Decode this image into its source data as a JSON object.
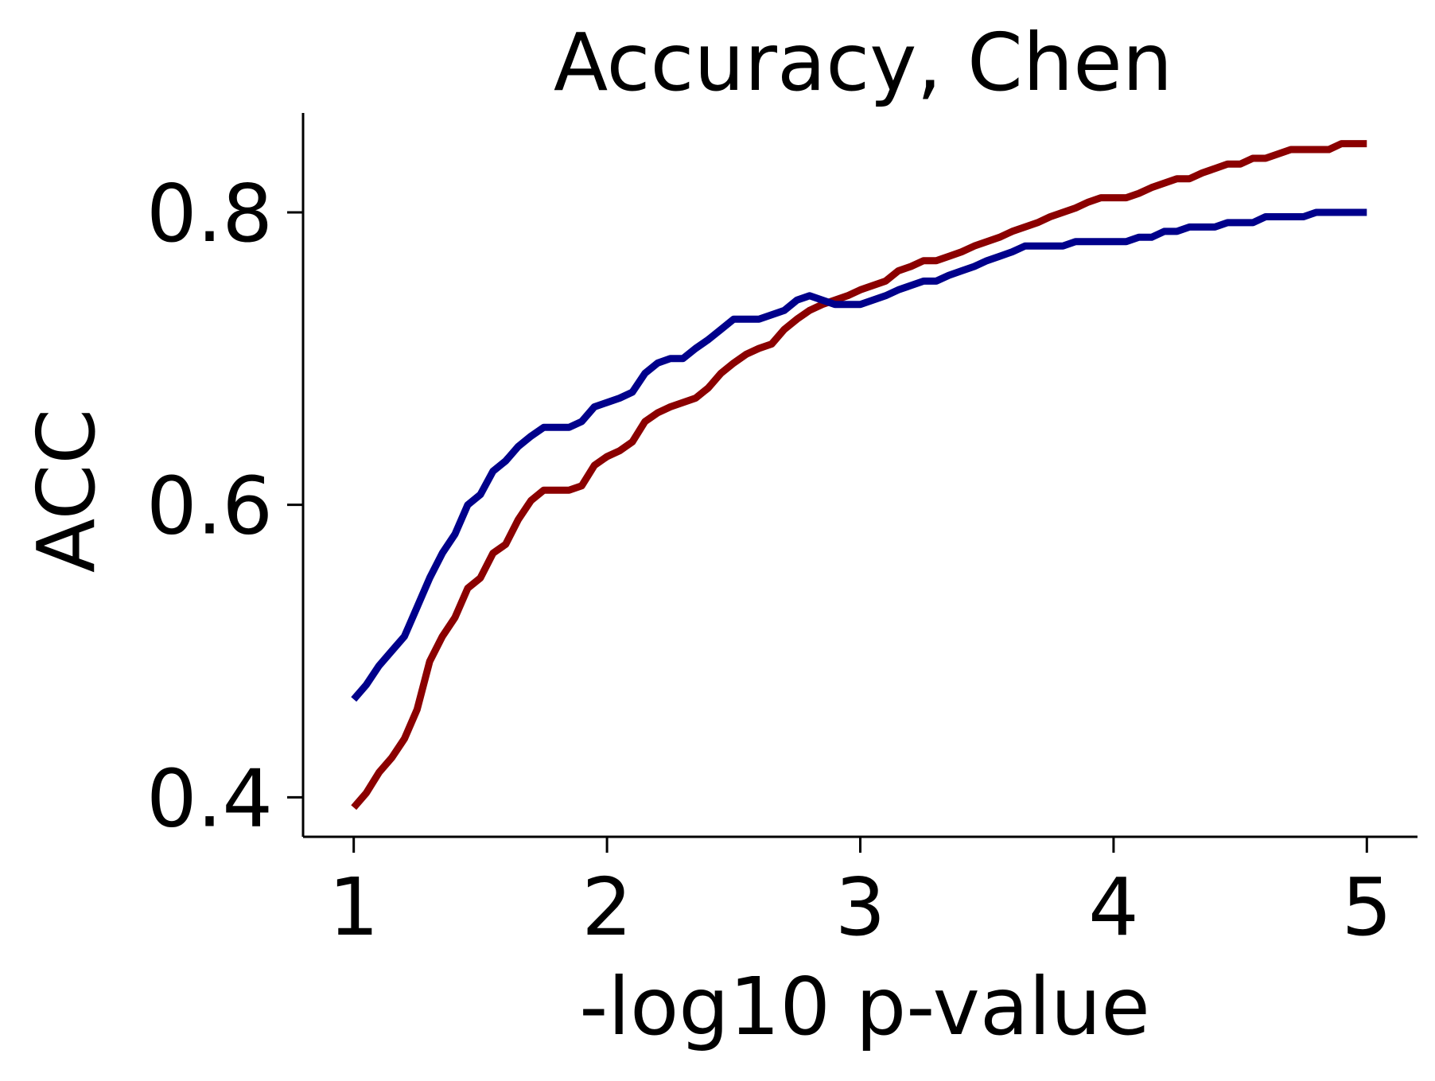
{
  "chart_data": {
    "type": "line",
    "title": "Accuracy, Chen",
    "xlabel": "-log10 p-value",
    "ylabel": "ACC",
    "xlim": [
      0.8,
      5.2
    ],
    "ylim": [
      0.373,
      0.868
    ],
    "xticks": [
      1,
      2,
      3,
      4,
      5
    ],
    "xtick_labels": [
      "1",
      "2",
      "3",
      "4",
      "5"
    ],
    "yticks": [
      0.4,
      0.6,
      0.8
    ],
    "ytick_labels": [
      "0.4",
      "0.6",
      "0.8"
    ],
    "grid": false,
    "legend": false,
    "series": [
      {
        "color": "#8b0000",
        "points": [
          [
            1.0,
            0.393
          ],
          [
            1.05,
            0.403
          ],
          [
            1.1,
            0.417
          ],
          [
            1.15,
            0.427
          ],
          [
            1.2,
            0.44
          ],
          [
            1.25,
            0.46
          ],
          [
            1.3,
            0.493
          ],
          [
            1.35,
            0.51
          ],
          [
            1.4,
            0.523
          ],
          [
            1.45,
            0.543
          ],
          [
            1.5,
            0.55
          ],
          [
            1.55,
            0.567
          ],
          [
            1.6,
            0.573
          ],
          [
            1.65,
            0.59
          ],
          [
            1.7,
            0.603
          ],
          [
            1.75,
            0.61
          ],
          [
            1.8,
            0.61
          ],
          [
            1.85,
            0.61
          ],
          [
            1.9,
            0.613
          ],
          [
            1.95,
            0.627
          ],
          [
            2.0,
            0.633
          ],
          [
            2.05,
            0.637
          ],
          [
            2.1,
            0.643
          ],
          [
            2.15,
            0.657
          ],
          [
            2.2,
            0.663
          ],
          [
            2.25,
            0.667
          ],
          [
            2.3,
            0.67
          ],
          [
            2.35,
            0.673
          ],
          [
            2.4,
            0.68
          ],
          [
            2.45,
            0.69
          ],
          [
            2.5,
            0.697
          ],
          [
            2.55,
            0.703
          ],
          [
            2.6,
            0.707
          ],
          [
            2.65,
            0.71
          ],
          [
            2.7,
            0.72
          ],
          [
            2.75,
            0.727
          ],
          [
            2.8,
            0.733
          ],
          [
            2.85,
            0.737
          ],
          [
            2.9,
            0.74
          ],
          [
            2.95,
            0.743
          ],
          [
            3.0,
            0.747
          ],
          [
            3.05,
            0.75
          ],
          [
            3.1,
            0.753
          ],
          [
            3.15,
            0.76
          ],
          [
            3.2,
            0.763
          ],
          [
            3.25,
            0.767
          ],
          [
            3.3,
            0.767
          ],
          [
            3.35,
            0.77
          ],
          [
            3.4,
            0.773
          ],
          [
            3.45,
            0.777
          ],
          [
            3.5,
            0.78
          ],
          [
            3.55,
            0.783
          ],
          [
            3.6,
            0.787
          ],
          [
            3.65,
            0.79
          ],
          [
            3.7,
            0.793
          ],
          [
            3.75,
            0.797
          ],
          [
            3.8,
            0.8
          ],
          [
            3.85,
            0.803
          ],
          [
            3.9,
            0.807
          ],
          [
            3.95,
            0.81
          ],
          [
            4.0,
            0.81
          ],
          [
            4.05,
            0.81
          ],
          [
            4.1,
            0.813
          ],
          [
            4.15,
            0.817
          ],
          [
            4.2,
            0.82
          ],
          [
            4.25,
            0.823
          ],
          [
            4.3,
            0.823
          ],
          [
            4.35,
            0.827
          ],
          [
            4.4,
            0.83
          ],
          [
            4.45,
            0.833
          ],
          [
            4.5,
            0.833
          ],
          [
            4.55,
            0.837
          ],
          [
            4.6,
            0.837
          ],
          [
            4.65,
            0.84
          ],
          [
            4.7,
            0.843
          ],
          [
            4.75,
            0.843
          ],
          [
            4.8,
            0.843
          ],
          [
            4.85,
            0.843
          ],
          [
            4.9,
            0.847
          ],
          [
            4.95,
            0.847
          ],
          [
            5.0,
            0.847
          ]
        ]
      },
      {
        "color": "#00008b",
        "points": [
          [
            1.0,
            0.467
          ],
          [
            1.05,
            0.477
          ],
          [
            1.1,
            0.49
          ],
          [
            1.15,
            0.5
          ],
          [
            1.2,
            0.51
          ],
          [
            1.25,
            0.53
          ],
          [
            1.3,
            0.55
          ],
          [
            1.35,
            0.567
          ],
          [
            1.4,
            0.58
          ],
          [
            1.45,
            0.6
          ],
          [
            1.5,
            0.607
          ],
          [
            1.55,
            0.623
          ],
          [
            1.6,
            0.63
          ],
          [
            1.65,
            0.64
          ],
          [
            1.7,
            0.647
          ],
          [
            1.75,
            0.653
          ],
          [
            1.8,
            0.653
          ],
          [
            1.85,
            0.653
          ],
          [
            1.9,
            0.657
          ],
          [
            1.95,
            0.667
          ],
          [
            2.0,
            0.67
          ],
          [
            2.05,
            0.673
          ],
          [
            2.1,
            0.677
          ],
          [
            2.15,
            0.69
          ],
          [
            2.2,
            0.697
          ],
          [
            2.25,
            0.7
          ],
          [
            2.3,
            0.7
          ],
          [
            2.35,
            0.707
          ],
          [
            2.4,
            0.713
          ],
          [
            2.45,
            0.72
          ],
          [
            2.5,
            0.727
          ],
          [
            2.55,
            0.727
          ],
          [
            2.6,
            0.727
          ],
          [
            2.65,
            0.73
          ],
          [
            2.7,
            0.733
          ],
          [
            2.75,
            0.74
          ],
          [
            2.8,
            0.743
          ],
          [
            2.85,
            0.74
          ],
          [
            2.9,
            0.737
          ],
          [
            2.95,
            0.737
          ],
          [
            3.0,
            0.737
          ],
          [
            3.05,
            0.74
          ],
          [
            3.1,
            0.743
          ],
          [
            3.15,
            0.747
          ],
          [
            3.2,
            0.75
          ],
          [
            3.25,
            0.753
          ],
          [
            3.3,
            0.753
          ],
          [
            3.35,
            0.757
          ],
          [
            3.4,
            0.76
          ],
          [
            3.45,
            0.763
          ],
          [
            3.5,
            0.767
          ],
          [
            3.55,
            0.77
          ],
          [
            3.6,
            0.773
          ],
          [
            3.65,
            0.777
          ],
          [
            3.7,
            0.777
          ],
          [
            3.75,
            0.777
          ],
          [
            3.8,
            0.777
          ],
          [
            3.85,
            0.78
          ],
          [
            3.9,
            0.78
          ],
          [
            3.95,
            0.78
          ],
          [
            4.0,
            0.78
          ],
          [
            4.05,
            0.78
          ],
          [
            4.1,
            0.783
          ],
          [
            4.15,
            0.783
          ],
          [
            4.2,
            0.787
          ],
          [
            4.25,
            0.787
          ],
          [
            4.3,
            0.79
          ],
          [
            4.35,
            0.79
          ],
          [
            4.4,
            0.79
          ],
          [
            4.45,
            0.793
          ],
          [
            4.5,
            0.793
          ],
          [
            4.55,
            0.793
          ],
          [
            4.6,
            0.797
          ],
          [
            4.65,
            0.797
          ],
          [
            4.7,
            0.797
          ],
          [
            4.75,
            0.797
          ],
          [
            4.8,
            0.8
          ],
          [
            4.85,
            0.8
          ],
          [
            4.9,
            0.8
          ],
          [
            4.95,
            0.8
          ],
          [
            5.0,
            0.8
          ]
        ]
      }
    ]
  }
}
